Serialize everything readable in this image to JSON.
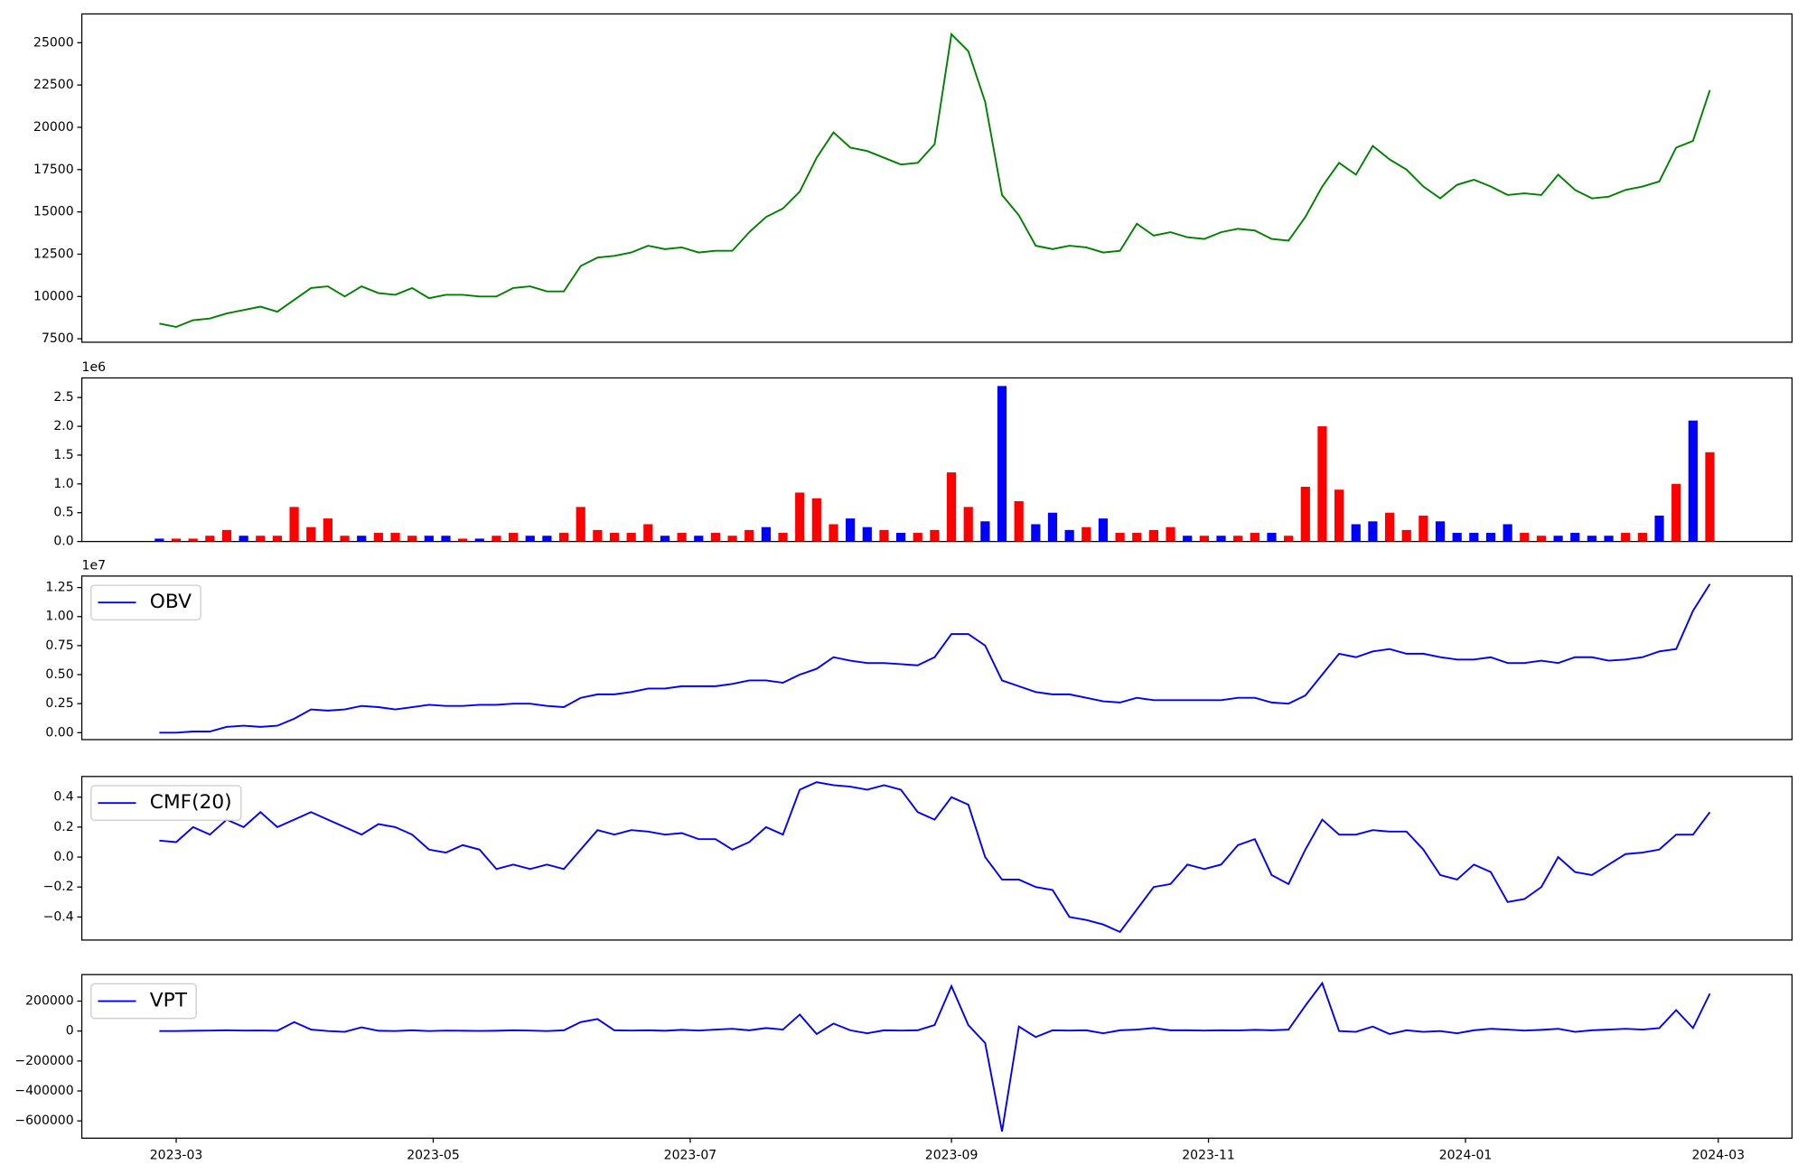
{
  "chart_data": [
    {
      "type": "line",
      "color": "#008000",
      "values": [
        8400,
        8200,
        8600,
        8700,
        9000,
        9200,
        9400,
        9100,
        9800,
        10500,
        10600,
        10000,
        10600,
        10200,
        10100,
        10500,
        9900,
        10100,
        10100,
        10000,
        10000,
        10500,
        10600,
        10300,
        10300,
        11800,
        12300,
        12400,
        12600,
        13000,
        12800,
        12900,
        12600,
        12700,
        12700,
        13800,
        14700,
        15200,
        16200,
        18200,
        19700,
        18800,
        18600,
        18200,
        17800,
        17900,
        19000,
        25500,
        24500,
        21500,
        16000,
        14800,
        13000,
        12800,
        13000,
        12900,
        12600,
        12700,
        14300,
        13600,
        13800,
        13500,
        13400,
        13800,
        14000,
        13900,
        13400,
        13300,
        14700,
        16500,
        17900,
        17200,
        18900,
        18100,
        17500,
        16500,
        15800,
        16600,
        16900,
        16500,
        16000,
        16100,
        16000,
        17200,
        16300,
        15800,
        15900,
        16300,
        16500,
        16800,
        18800,
        19200,
        22200
      ],
      "ylim": [
        7296,
        26702
      ],
      "yticks": [
        7500,
        10000,
        12500,
        15000,
        17500,
        20000,
        22500,
        25000
      ]
    },
    {
      "type": "bar",
      "offset_label": "1e6",
      "values": [
        0.05,
        0.05,
        0.05,
        0.1,
        0.2,
        0.1,
        0.1,
        0.1,
        0.6,
        0.25,
        0.4,
        0.1,
        0.1,
        0.15,
        0.15,
        0.1,
        0.1,
        0.1,
        0.05,
        0.05,
        0.1,
        0.15,
        0.1,
        0.1,
        0.15,
        0.6,
        0.2,
        0.15,
        0.15,
        0.3,
        0.1,
        0.15,
        0.1,
        0.15,
        0.1,
        0.2,
        0.25,
        0.15,
        0.85,
        0.75,
        0.3,
        0.4,
        0.25,
        0.2,
        0.15,
        0.15,
        0.2,
        1.2,
        0.6,
        0.35,
        2.7,
        0.7,
        0.3,
        0.5,
        0.2,
        0.25,
        0.4,
        0.15,
        0.15,
        0.2,
        0.25,
        0.1,
        0.1,
        0.1,
        0.1,
        0.15,
        0.15,
        0.1,
        0.95,
        2.0,
        0.9,
        0.3,
        0.35,
        0.5,
        0.2,
        0.45,
        0.35,
        0.15,
        0.15,
        0.15,
        0.3,
        0.15,
        0.1,
        0.1,
        0.15,
        0.1,
        0.1,
        0.15,
        0.15,
        0.45,
        1.0,
        2.1,
        1.55
      ],
      "colors": [
        "#0000ff",
        "#ff0000",
        "#ff0000",
        "#ff0000",
        "#ff0000",
        "#0000ff",
        "#ff0000",
        "#ff0000",
        "#ff0000",
        "#ff0000",
        "#ff0000",
        "#ff0000",
        "#0000ff",
        "#ff0000",
        "#ff0000",
        "#ff0000",
        "#0000ff",
        "#0000ff",
        "#ff0000",
        "#0000ff",
        "#ff0000",
        "#ff0000",
        "#0000ff",
        "#0000ff",
        "#ff0000",
        "#ff0000",
        "#ff0000",
        "#ff0000",
        "#ff0000",
        "#ff0000",
        "#0000ff",
        "#ff0000",
        "#0000ff",
        "#ff0000",
        "#ff0000",
        "#ff0000",
        "#0000ff",
        "#ff0000",
        "#ff0000",
        "#ff0000",
        "#ff0000",
        "#0000ff",
        "#0000ff",
        "#ff0000",
        "#0000ff",
        "#ff0000",
        "#ff0000",
        "#ff0000",
        "#ff0000",
        "#0000ff",
        "#0000ff",
        "#ff0000",
        "#0000ff",
        "#0000ff",
        "#0000ff",
        "#ff0000",
        "#0000ff",
        "#ff0000",
        "#ff0000",
        "#ff0000",
        "#ff0000",
        "#0000ff",
        "#ff0000",
        "#0000ff",
        "#ff0000",
        "#ff0000",
        "#0000ff",
        "#ff0000",
        "#ff0000",
        "#ff0000",
        "#ff0000",
        "#0000ff",
        "#0000ff",
        "#ff0000",
        "#ff0000",
        "#ff0000",
        "#0000ff",
        "#0000ff",
        "#0000ff",
        "#0000ff",
        "#0000ff",
        "#ff0000",
        "#ff0000",
        "#0000ff",
        "#0000ff",
        "#0000ff",
        "#0000ff",
        "#ff0000",
        "#ff0000",
        "#0000ff",
        "#ff0000",
        "#0000ff",
        "#ff0000"
      ],
      "ylim": [
        0,
        2.84
      ],
      "yticks": [
        {
          "value": 0,
          "label": "0.0"
        },
        {
          "value": 0.5,
          "label": "0.5"
        },
        {
          "value": 1,
          "label": "1.0"
        },
        {
          "value": 1.5,
          "label": "1.5"
        },
        {
          "value": 2,
          "label": "2.0"
        },
        {
          "value": 2.5,
          "label": "2.5"
        }
      ]
    },
    {
      "type": "line",
      "offset_label": "1e7",
      "legend": "upper left",
      "series": [
        {
          "name": "OBV",
          "color": "#0000ff",
          "values": [
            0,
            0,
            0.01,
            0.01,
            0.05,
            0.06,
            0.05,
            0.06,
            0.12,
            0.2,
            0.19,
            0.2,
            0.23,
            0.22,
            0.2,
            0.22,
            0.24,
            0.23,
            0.23,
            0.24,
            0.24,
            0.25,
            0.25,
            0.23,
            0.22,
            0.3,
            0.33,
            0.33,
            0.35,
            0.38,
            0.38,
            0.4,
            0.4,
            0.4,
            0.42,
            0.45,
            0.45,
            0.43,
            0.5,
            0.55,
            0.65,
            0.62,
            0.6,
            0.6,
            0.59,
            0.58,
            0.65,
            0.85,
            0.85,
            0.75,
            0.45,
            0.4,
            0.35,
            0.33,
            0.33,
            0.3,
            0.27,
            0.26,
            0.3,
            0.28,
            0.28,
            0.28,
            0.28,
            0.28,
            0.3,
            0.3,
            0.26,
            0.25,
            0.32,
            0.5,
            0.68,
            0.65,
            0.7,
            0.72,
            0.68,
            0.68,
            0.65,
            0.63,
            0.63,
            0.65,
            0.6,
            0.6,
            0.62,
            0.6,
            0.65,
            0.65,
            0.62,
            0.63,
            0.65,
            0.7,
            0.72,
            1.05,
            1.28
          ]
        }
      ],
      "ylim": [
        -0.06,
        1.349
      ],
      "yticks": [
        {
          "value": 0,
          "label": "0.00"
        },
        {
          "value": 0.25,
          "label": "0.25"
        },
        {
          "value": 0.5,
          "label": "0.50"
        },
        {
          "value": 0.75,
          "label": "0.75"
        },
        {
          "value": 1,
          "label": "1.00"
        },
        {
          "value": 1.25,
          "label": "1.25"
        }
      ]
    },
    {
      "type": "line",
      "legend": "upper left",
      "series": [
        {
          "name": "CMF(20)",
          "color": "#0000ff",
          "values": [
            0.11,
            0.1,
            0.2,
            0.15,
            0.25,
            0.2,
            0.3,
            0.2,
            0.25,
            0.3,
            0.25,
            0.2,
            0.15,
            0.22,
            0.2,
            0.15,
            0.05,
            0.03,
            0.08,
            0.05,
            -0.08,
            -0.05,
            -0.08,
            -0.05,
            -0.08,
            0.05,
            0.18,
            0.15,
            0.18,
            0.17,
            0.15,
            0.16,
            0.12,
            0.12,
            0.05,
            0.1,
            0.2,
            0.15,
            0.45,
            0.5,
            0.48,
            0.47,
            0.45,
            0.48,
            0.45,
            0.3,
            0.25,
            0.4,
            0.35,
            0.0,
            -0.15,
            -0.15,
            -0.2,
            -0.22,
            -0.4,
            -0.42,
            -0.45,
            -0.5,
            -0.35,
            -0.2,
            -0.18,
            -0.05,
            -0.08,
            -0.05,
            0.08,
            0.12,
            -0.12,
            -0.18,
            0.05,
            0.25,
            0.15,
            0.15,
            0.18,
            0.17,
            0.17,
            0.05,
            -0.12,
            -0.15,
            -0.05,
            -0.1,
            -0.3,
            -0.28,
            -0.2,
            0.0,
            -0.1,
            -0.12,
            -0.05,
            0.02,
            0.03,
            0.05,
            0.15,
            0.15,
            0.3
          ]
        }
      ],
      "ylim": [
        -0.554,
        0.538
      ],
      "yticks": [
        {
          "value": -0.4,
          "label": "−0.4"
        },
        {
          "value": -0.2,
          "label": "−0.2"
        },
        {
          "value": 0,
          "label": "0.0"
        },
        {
          "value": 0.2,
          "label": "0.2"
        },
        {
          "value": 0.4,
          "label": "0.4"
        }
      ]
    },
    {
      "type": "line",
      "legend": "upper left",
      "series": [
        {
          "name": "VPT",
          "color": "#0000ff",
          "values": [
            0,
            0,
            2000,
            3000,
            5000,
            3000,
            4000,
            2000,
            60000,
            10000,
            0,
            -5000,
            25000,
            2000,
            0,
            5000,
            0,
            3000,
            2000,
            1000,
            2000,
            5000,
            3000,
            0,
            5000,
            60000,
            80000,
            5000,
            3000,
            5000,
            2000,
            8000,
            3000,
            10000,
            15000,
            5000,
            20000,
            10000,
            110000,
            -20000,
            50000,
            5000,
            -15000,
            5000,
            3000,
            5000,
            40000,
            300000,
            40000,
            -80000,
            -670000,
            30000,
            -40000,
            5000,
            3000,
            5000,
            -15000,
            5000,
            10000,
            20000,
            5000,
            5000,
            3000,
            5000,
            4000,
            8000,
            5000,
            10000,
            170000,
            320000,
            0,
            -5000,
            30000,
            -20000,
            5000,
            -5000,
            0,
            -15000,
            5000,
            15000,
            10000,
            3000,
            8000,
            15000,
            -5000,
            5000,
            10000,
            15000,
            10000,
            20000,
            140000,
            20000,
            250000
          ]
        }
      ],
      "ylim": [
        -715385,
        376923
      ],
      "yticks": [
        {
          "value": -600000,
          "label": "−600000"
        },
        {
          "value": -400000,
          "label": "−400000"
        },
        {
          "value": -200000,
          "label": "−200000"
        },
        0,
        200000
      ],
      "x": [
        19413,
        19417,
        19421,
        19425,
        19429,
        19433,
        19437,
        19441,
        19445,
        19449,
        19453,
        19457,
        19461,
        19465,
        19469,
        19473,
        19477,
        19481,
        19485,
        19489,
        19493,
        19497,
        19501,
        19505,
        19509,
        19513,
        19517,
        19521,
        19525,
        19529,
        19533,
        19537,
        19541,
        19545,
        19549,
        19553,
        19557,
        19561,
        19565,
        19569,
        19573,
        19577,
        19581,
        19585,
        19589,
        19593,
        19597,
        19601,
        19605,
        19609,
        19613,
        19617,
        19621,
        19625,
        19629,
        19633,
        19637,
        19641,
        19645,
        19649,
        19653,
        19657,
        19661,
        19665,
        19669,
        19673,
        19677,
        19681,
        19685,
        19689,
        19693,
        19697,
        19701,
        19705,
        19709,
        19713,
        19717,
        19721,
        19725,
        19729,
        19733,
        19737,
        19741,
        19745,
        19749,
        19753,
        19757,
        19761,
        19765,
        19769,
        19773,
        19777,
        19781
      ],
      "xlim": [
        19394.6,
        19800.5
      ],
      "xticks": [
        {
          "value": 19417,
          "label": "2023-03"
        },
        {
          "value": 19478,
          "label": "2023-05"
        },
        {
          "value": 19539,
          "label": "2023-07"
        },
        {
          "value": 19601,
          "label": "2023-09"
        },
        {
          "value": 19662,
          "label": "2023-11"
        },
        {
          "value": 19723,
          "label": "2024-01"
        },
        {
          "value": 19783,
          "label": "2024-03"
        }
      ]
    }
  ]
}
